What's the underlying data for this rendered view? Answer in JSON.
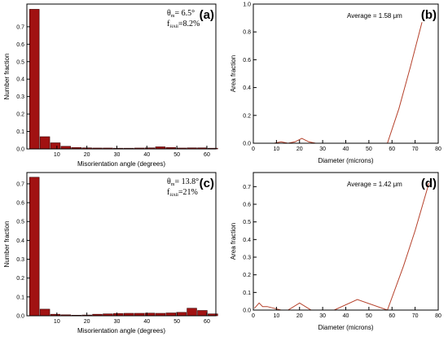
{
  "colors": {
    "bar_fill": "#a11212",
    "bar_stroke": "#3a0000",
    "line": "#b5402a"
  },
  "chart_data": [
    {
      "id": "a",
      "type": "bar",
      "panel_label": "(a)",
      "annotations": [
        "θ",
        "m",
        "= 6.5°",
        "f",
        "HAB",
        "=8.2%"
      ],
      "xlabel": "Misorientation angle (degrees)",
      "ylabel": "Number fraction",
      "xlim": [
        0,
        63
      ],
      "ylim": [
        0,
        0.83
      ],
      "xticks": [
        10,
        20,
        30,
        40,
        50,
        60
      ],
      "yticks": [
        0.0,
        0.1,
        0.2,
        0.3,
        0.4,
        0.5,
        0.6,
        0.7
      ],
      "bin_width": 3.5,
      "x": [
        2.5,
        6,
        9.5,
        13,
        16.5,
        20,
        23.5,
        27,
        30.5,
        34,
        37.5,
        41,
        44.5,
        48,
        51.5,
        55,
        58.5,
        62
      ],
      "values": [
        0.8,
        0.07,
        0.035,
        0.015,
        0.008,
        0.006,
        0.005,
        0.005,
        0.004,
        0.004,
        0.005,
        0.006,
        0.012,
        0.008,
        0.005,
        0.006,
        0.006,
        0.004
      ]
    },
    {
      "id": "b",
      "type": "line",
      "panel_label": "(b)",
      "annotations": [
        "Average = 1.58 μm"
      ],
      "xlabel": "Diameter (microns)",
      "ylabel": "Area fraction",
      "xlim": [
        0,
        80
      ],
      "ylim": [
        0,
        1.0
      ],
      "xticks": [
        0,
        10,
        20,
        30,
        40,
        50,
        60,
        70,
        80
      ],
      "yticks": [
        0.0,
        0.2,
        0.4,
        0.6,
        0.8,
        1.0
      ],
      "x": [
        0.8,
        3,
        6,
        9,
        12,
        15,
        18,
        21,
        24,
        27,
        30,
        35,
        40,
        45,
        50,
        55,
        58,
        63,
        68,
        73
      ],
      "y": [
        0,
        0,
        0,
        0,
        0.01,
        0.0,
        0.01,
        0.035,
        0.01,
        0,
        0,
        0,
        0,
        0,
        0,
        0,
        0,
        0.25,
        0.55,
        0.87
      ]
    },
    {
      "id": "c",
      "type": "bar",
      "panel_label": "(c)",
      "annotations": [
        "θ",
        "m",
        "= 13.8°",
        "f",
        "HAB",
        "=21%"
      ],
      "xlabel": "Misorientation angle (degrees)",
      "ylabel": "Number fraction",
      "xlim": [
        0,
        63
      ],
      "ylim": [
        0,
        0.76
      ],
      "xticks": [
        10,
        20,
        30,
        40,
        50,
        60
      ],
      "yticks": [
        0.0,
        0.1,
        0.2,
        0.3,
        0.4,
        0.5,
        0.6,
        0.7
      ],
      "bin_width": 3.5,
      "x": [
        2.5,
        6,
        9.5,
        13,
        16.5,
        20,
        23.5,
        27,
        30.5,
        34,
        37.5,
        41,
        44.5,
        48,
        51.5,
        55,
        58.5,
        62
      ],
      "values": [
        0.735,
        0.035,
        0.008,
        0.005,
        0.003,
        0.004,
        0.008,
        0.01,
        0.012,
        0.013,
        0.013,
        0.014,
        0.013,
        0.015,
        0.018,
        0.04,
        0.028,
        0.01
      ]
    },
    {
      "id": "d",
      "type": "line",
      "panel_label": "(d)",
      "annotations": [
        "Average = 1.42 μm"
      ],
      "xlabel": "Diameter (microns)",
      "ylabel": "Area fraction",
      "xlim": [
        0,
        80
      ],
      "ylim": [
        0,
        0.78
      ],
      "xticks": [
        0,
        10,
        20,
        30,
        40,
        50,
        60,
        70,
        80
      ],
      "yticks": [
        0.0,
        0.1,
        0.2,
        0.3,
        0.4,
        0.5,
        0.6,
        0.7
      ],
      "x": [
        0.5,
        2.5,
        4,
        6,
        9,
        12,
        15,
        20,
        25,
        35,
        45,
        58,
        65,
        70,
        76
      ],
      "y": [
        0.01,
        0.04,
        0.02,
        0.02,
        0.01,
        0.0,
        0.0,
        0.04,
        0.0,
        0.0,
        0.06,
        0.0,
        0.25,
        0.45,
        0.72
      ]
    }
  ]
}
